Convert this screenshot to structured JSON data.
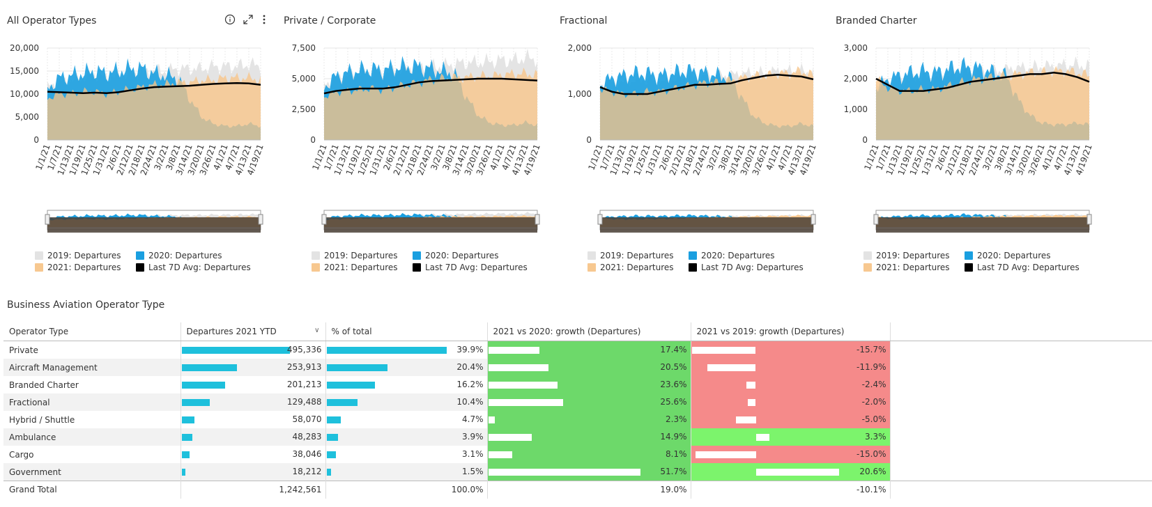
{
  "panels": [
    {
      "title": "All Operator Types",
      "has_icons": true
    },
    {
      "title": "Private / Corporate",
      "has_icons": false
    },
    {
      "title": "Fractional",
      "has_icons": false
    },
    {
      "title": "Branded Charter",
      "has_icons": false
    }
  ],
  "icons": {
    "info": "info-icon",
    "expand": "expand-icon",
    "more": "more-options-icon"
  },
  "colors": {
    "series_2019": "#e3e3e3",
    "series_2020": "#1a9fe0",
    "series_2021": "#f7c890",
    "series_avg": "#000000",
    "overlap": "#c9bd9b",
    "bar": "#1ec0dc",
    "growth_positive": "#6dd96a",
    "growth_positive_light": "#7cf46c",
    "growth_negative": "#f58a8a"
  },
  "legend": {
    "s2019": "2019: Departures",
    "s2020": "2020: Departures",
    "s2021": "2021: Departures",
    "avg": "Last 7D Avg: Departures"
  },
  "chart_data": [
    {
      "type": "area",
      "title": "All Operator Types",
      "x": [
        "1/1/21",
        "1/7/21",
        "1/13/21",
        "1/19/21",
        "1/25/21",
        "1/31/21",
        "2/6/21",
        "2/12/21",
        "2/18/21",
        "2/24/21",
        "3/2/21",
        "3/8/21",
        "3/14/21",
        "3/20/21",
        "3/26/21",
        "4/1/21",
        "4/7/21",
        "4/13/21",
        "4/19/21"
      ],
      "yticks": [
        "0",
        "5,000",
        "10,000",
        "15,000",
        "20,000"
      ],
      "ylim": [
        0,
        20000
      ],
      "series": [
        {
          "name": "2019: Departures",
          "values": [
            11500,
            12500,
            13000,
            13500,
            14000,
            13500,
            14000,
            14500,
            14500,
            15000,
            15000,
            15500,
            15500,
            15500,
            16000,
            16000,
            16000,
            16500,
            16000
          ]
        },
        {
          "name": "2020: Departures",
          "values": [
            11000,
            13500,
            14000,
            14500,
            15000,
            14500,
            15000,
            15500,
            15500,
            14500,
            14000,
            13500,
            9000,
            5000,
            3500,
            3000,
            3000,
            3500,
            3000
          ]
        },
        {
          "name": "2021: Departures",
          "values": [
            9000,
            10000,
            10000,
            10500,
            10500,
            10000,
            10500,
            11000,
            11500,
            12000,
            12000,
            12500,
            12500,
            13000,
            13000,
            13500,
            13500,
            13500,
            13000
          ]
        },
        {
          "name": "Last 7D Avg: Departures",
          "values": [
            10500,
            10400,
            10300,
            10200,
            10300,
            10200,
            10400,
            10800,
            11200,
            11500,
            11600,
            11700,
            11800,
            12000,
            12200,
            12300,
            12400,
            12300,
            12000
          ]
        }
      ]
    },
    {
      "type": "area",
      "title": "Private / Corporate",
      "x": [
        "1/1/21",
        "1/7/21",
        "1/13/21",
        "1/19/21",
        "1/25/21",
        "1/31/21",
        "2/6/21",
        "2/12/21",
        "2/18/21",
        "2/24/21",
        "3/2/21",
        "3/8/21",
        "3/14/21",
        "3/20/21",
        "3/26/21",
        "4/1/21",
        "4/7/21",
        "4/13/21",
        "4/19/21"
      ],
      "yticks": [
        "0",
        "2,500",
        "5,000",
        "7,500"
      ],
      "ylim": [
        0,
        7500
      ],
      "series": [
        {
          "name": "2019: Departures",
          "values": [
            4500,
            5000,
            5200,
            5400,
            5500,
            5400,
            5600,
            5800,
            5900,
            6000,
            6000,
            6200,
            6300,
            6300,
            6400,
            6500,
            6500,
            6700,
            6600
          ]
        },
        {
          "name": "2020: Departures",
          "values": [
            4300,
            5200,
            5500,
            5700,
            5800,
            5700,
            5900,
            6000,
            6000,
            5800,
            5600,
            5400,
            3500,
            2000,
            1400,
            1200,
            1200,
            1400,
            1200
          ]
        },
        {
          "name": "2021: Departures",
          "values": [
            3500,
            3900,
            4000,
            4100,
            4200,
            4100,
            4300,
            4500,
            4700,
            4900,
            5000,
            5100,
            5100,
            5200,
            5200,
            5300,
            5400,
            5400,
            5300
          ]
        },
        {
          "name": "Last 7D Avg: Departures",
          "values": [
            3800,
            4000,
            4100,
            4200,
            4200,
            4200,
            4300,
            4500,
            4700,
            4800,
            4850,
            4900,
            4950,
            5000,
            5000,
            5000,
            4950,
            4900,
            4850
          ]
        }
      ]
    },
    {
      "type": "area",
      "title": "Fractional",
      "x": [
        "1/1/21",
        "1/7/21",
        "1/13/21",
        "1/19/21",
        "1/25/21",
        "1/31/21",
        "2/6/21",
        "2/12/21",
        "2/18/21",
        "2/24/21",
        "3/2/21",
        "3/8/21",
        "3/14/21",
        "3/20/21",
        "3/26/21",
        "4/1/21",
        "4/7/21",
        "4/13/21",
        "4/19/21"
      ],
      "yticks": [
        "0",
        "1,000",
        "2,000"
      ],
      "ylim": [
        0,
        2000
      ],
      "series": [
        {
          "name": "2019: Departures",
          "values": [
            1200,
            1250,
            1250,
            1300,
            1300,
            1250,
            1300,
            1350,
            1350,
            1400,
            1400,
            1400,
            1450,
            1450,
            1450,
            1500,
            1500,
            1500,
            1450
          ]
        },
        {
          "name": "2020: Departures",
          "values": [
            1200,
            1350,
            1400,
            1450,
            1450,
            1400,
            1450,
            1500,
            1500,
            1450,
            1400,
            1350,
            900,
            500,
            350,
            300,
            300,
            350,
            300
          ]
        },
        {
          "name": "2021: Departures",
          "values": [
            1100,
            1050,
            1000,
            1000,
            1050,
            1050,
            1100,
            1150,
            1200,
            1250,
            1250,
            1300,
            1350,
            1400,
            1400,
            1450,
            1450,
            1500,
            1400
          ]
        },
        {
          "name": "Last 7D Avg: Departures",
          "values": [
            1150,
            1050,
            1000,
            1000,
            1000,
            1050,
            1100,
            1150,
            1200,
            1200,
            1220,
            1230,
            1300,
            1350,
            1400,
            1420,
            1400,
            1380,
            1320
          ]
        }
      ]
    },
    {
      "type": "area",
      "title": "Branded Charter",
      "x": [
        "1/1/21",
        "1/7/21",
        "1/13/21",
        "1/19/21",
        "1/25/21",
        "1/31/21",
        "2/6/21",
        "2/12/21",
        "2/18/21",
        "2/24/21",
        "3/2/21",
        "3/8/21",
        "3/14/21",
        "3/20/21",
        "3/26/21",
        "4/1/21",
        "4/7/21",
        "4/13/21",
        "4/19/21"
      ],
      "yticks": [
        "0",
        "1,000",
        "2,000",
        "3,000"
      ],
      "ylim": [
        0,
        3000
      ],
      "series": [
        {
          "name": "2019: Departures",
          "values": [
            1800,
            1900,
            1950,
            2000,
            2050,
            2000,
            2100,
            2150,
            2200,
            2250,
            2250,
            2300,
            2350,
            2350,
            2400,
            2400,
            2450,
            2450,
            2400
          ]
        },
        {
          "name": "2020: Departures",
          "values": [
            1700,
            2000,
            2100,
            2200,
            2250,
            2200,
            2300,
            2400,
            2400,
            2300,
            2200,
            2100,
            1300,
            800,
            550,
            500,
            500,
            550,
            500
          ]
        },
        {
          "name": "2021: Departures",
          "values": [
            2000,
            1700,
            1600,
            1600,
            1650,
            1650,
            1750,
            1850,
            1950,
            2000,
            2050,
            2100,
            2150,
            2200,
            2200,
            2250,
            2250,
            2200,
            2100
          ]
        },
        {
          "name": "Last 7D Avg: Departures",
          "values": [
            2000,
            1800,
            1600,
            1600,
            1600,
            1650,
            1700,
            1800,
            1900,
            1950,
            2000,
            2050,
            2100,
            2150,
            2150,
            2200,
            2150,
            2050,
            1900
          ]
        }
      ]
    },
    {
      "type": "table",
      "title": "Business Aviation Operator Type",
      "columns": [
        "Operator Type",
        "Departures 2021 YTD",
        "% of total",
        "2021 vs 2020: growth (Departures)",
        "2021 vs 2019: growth (Departures)"
      ],
      "rows": [
        {
          "type": "Private",
          "departures": 495336,
          "departures_label": "495,336",
          "pct": 39.9,
          "pct_label": "39.9%",
          "g2020": 17.4,
          "g2020_label": "17.4%",
          "g2019": -15.7,
          "g2019_label": "-15.7%"
        },
        {
          "type": "Aircraft Management",
          "departures": 253913,
          "departures_label": "253,913",
          "pct": 20.4,
          "pct_label": "20.4%",
          "g2020": 20.5,
          "g2020_label": "20.5%",
          "g2019": -11.9,
          "g2019_label": "-11.9%"
        },
        {
          "type": "Branded Charter",
          "departures": 201213,
          "departures_label": "201,213",
          "pct": 16.2,
          "pct_label": "16.2%",
          "g2020": 23.6,
          "g2020_label": "23.6%",
          "g2019": -2.4,
          "g2019_label": "-2.4%"
        },
        {
          "type": "Fractional",
          "departures": 129488,
          "departures_label": "129,488",
          "pct": 10.4,
          "pct_label": "10.4%",
          "g2020": 25.6,
          "g2020_label": "25.6%",
          "g2019": -2.0,
          "g2019_label": "-2.0%"
        },
        {
          "type": "Hybrid / Shuttle",
          "departures": 58070,
          "departures_label": "58,070",
          "pct": 4.7,
          "pct_label": "4.7%",
          "g2020": 2.3,
          "g2020_label": "2.3%",
          "g2019": -5.0,
          "g2019_label": "-5.0%"
        },
        {
          "type": "Ambulance",
          "departures": 48283,
          "departures_label": "48,283",
          "pct": 3.9,
          "pct_label": "3.9%",
          "g2020": 14.9,
          "g2020_label": "14.9%",
          "g2019": 3.3,
          "g2019_label": "3.3%"
        },
        {
          "type": "Cargo",
          "departures": 38046,
          "departures_label": "38,046",
          "pct": 3.1,
          "pct_label": "3.1%",
          "g2020": 8.1,
          "g2020_label": "8.1%",
          "g2019": -15.0,
          "g2019_label": "-15.0%"
        },
        {
          "type": "Government",
          "departures": 18212,
          "departures_label": "18,212",
          "pct": 1.5,
          "pct_label": "1.5%",
          "g2020": 51.7,
          "g2020_label": "51.7%",
          "g2019": 20.6,
          "g2019_label": "20.6%"
        }
      ],
      "total": {
        "type": "Grand Total",
        "departures_label": "1,242,561",
        "pct_label": "100.0%",
        "g2020_label": "19.0%",
        "g2019_label": "-10.1%"
      }
    }
  ],
  "table_title": "Business Aviation Operator Type",
  "sort_indicator": "chevron-down-icon"
}
